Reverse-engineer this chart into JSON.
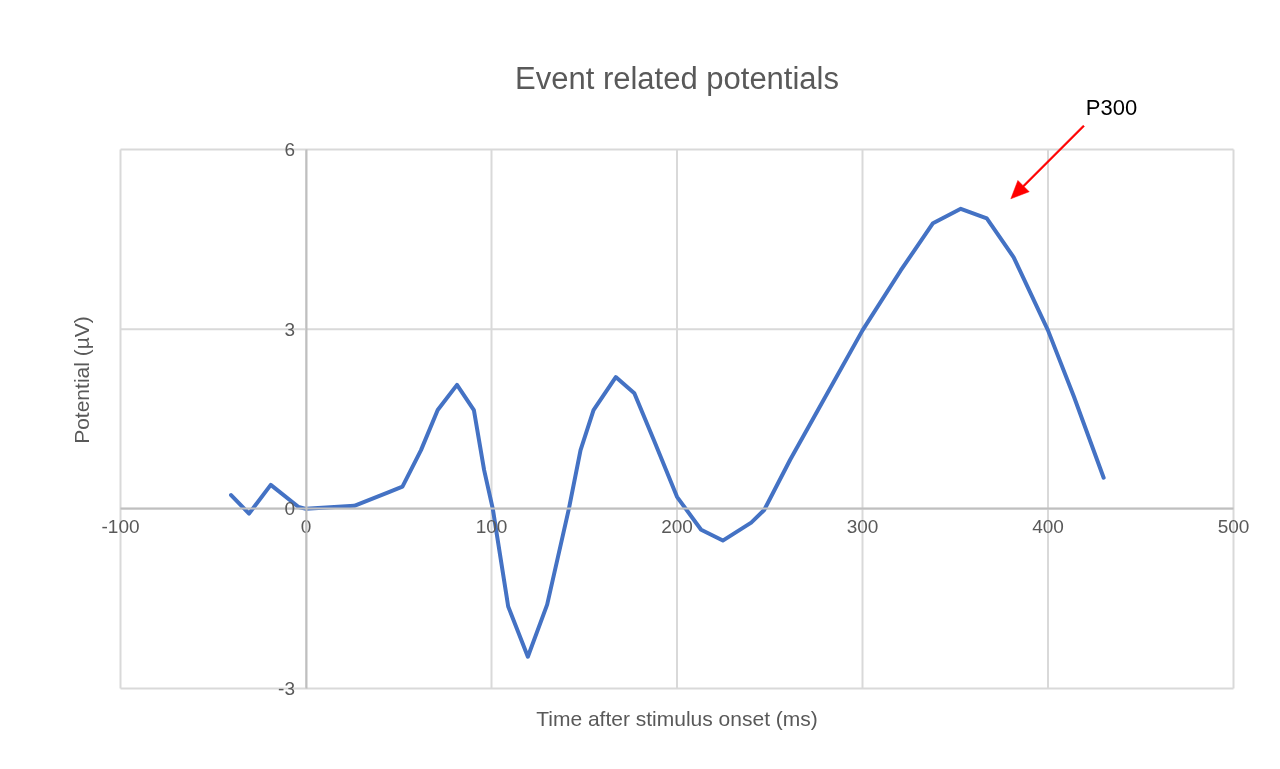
{
  "chart_data": {
    "type": "line",
    "title": "Event related potentials",
    "xlabel": "Time after stimulus onset (ms)",
    "ylabel": "Potential (µV)",
    "x": [
      -40.4,
      -30.7,
      -19,
      -4,
      0,
      26,
      44,
      52,
      62,
      71,
      81.4,
      90.5,
      96,
      100.7,
      109,
      119.6,
      130,
      141.7,
      148,
      155,
      167,
      177,
      187.5,
      200,
      213,
      224.7,
      240,
      247,
      261,
      276,
      300,
      320.6,
      338,
      353,
      367,
      381.5,
      400,
      414,
      430
    ],
    "series": [
      {
        "color": "#4472c4",
        "values": [
          0.23,
          -0.08,
          0.4,
          0.03,
          0,
          0.05,
          0.27,
          0.37,
          0.98,
          1.65,
          2.07,
          1.65,
          0.65,
          0,
          -1.63,
          -2.47,
          -1.6,
          0,
          0.98,
          1.65,
          2.2,
          1.93,
          1.15,
          0.2,
          -0.35,
          -0.53,
          -0.23,
          -0.02,
          0.82,
          1.65,
          2.98,
          3.98,
          4.77,
          5.01,
          4.85,
          4.2,
          2.98,
          1.87,
          0.52
        ]
      }
    ],
    "xlim": [
      -100,
      500
    ],
    "ylim": [
      -3,
      6
    ],
    "xticks": [
      -100,
      0,
      100,
      200,
      300,
      400,
      500
    ],
    "yticks": [
      -3,
      0,
      3,
      6
    ],
    "grid": true,
    "line_style": "solid",
    "annotations": [
      "P300"
    ]
  }
}
